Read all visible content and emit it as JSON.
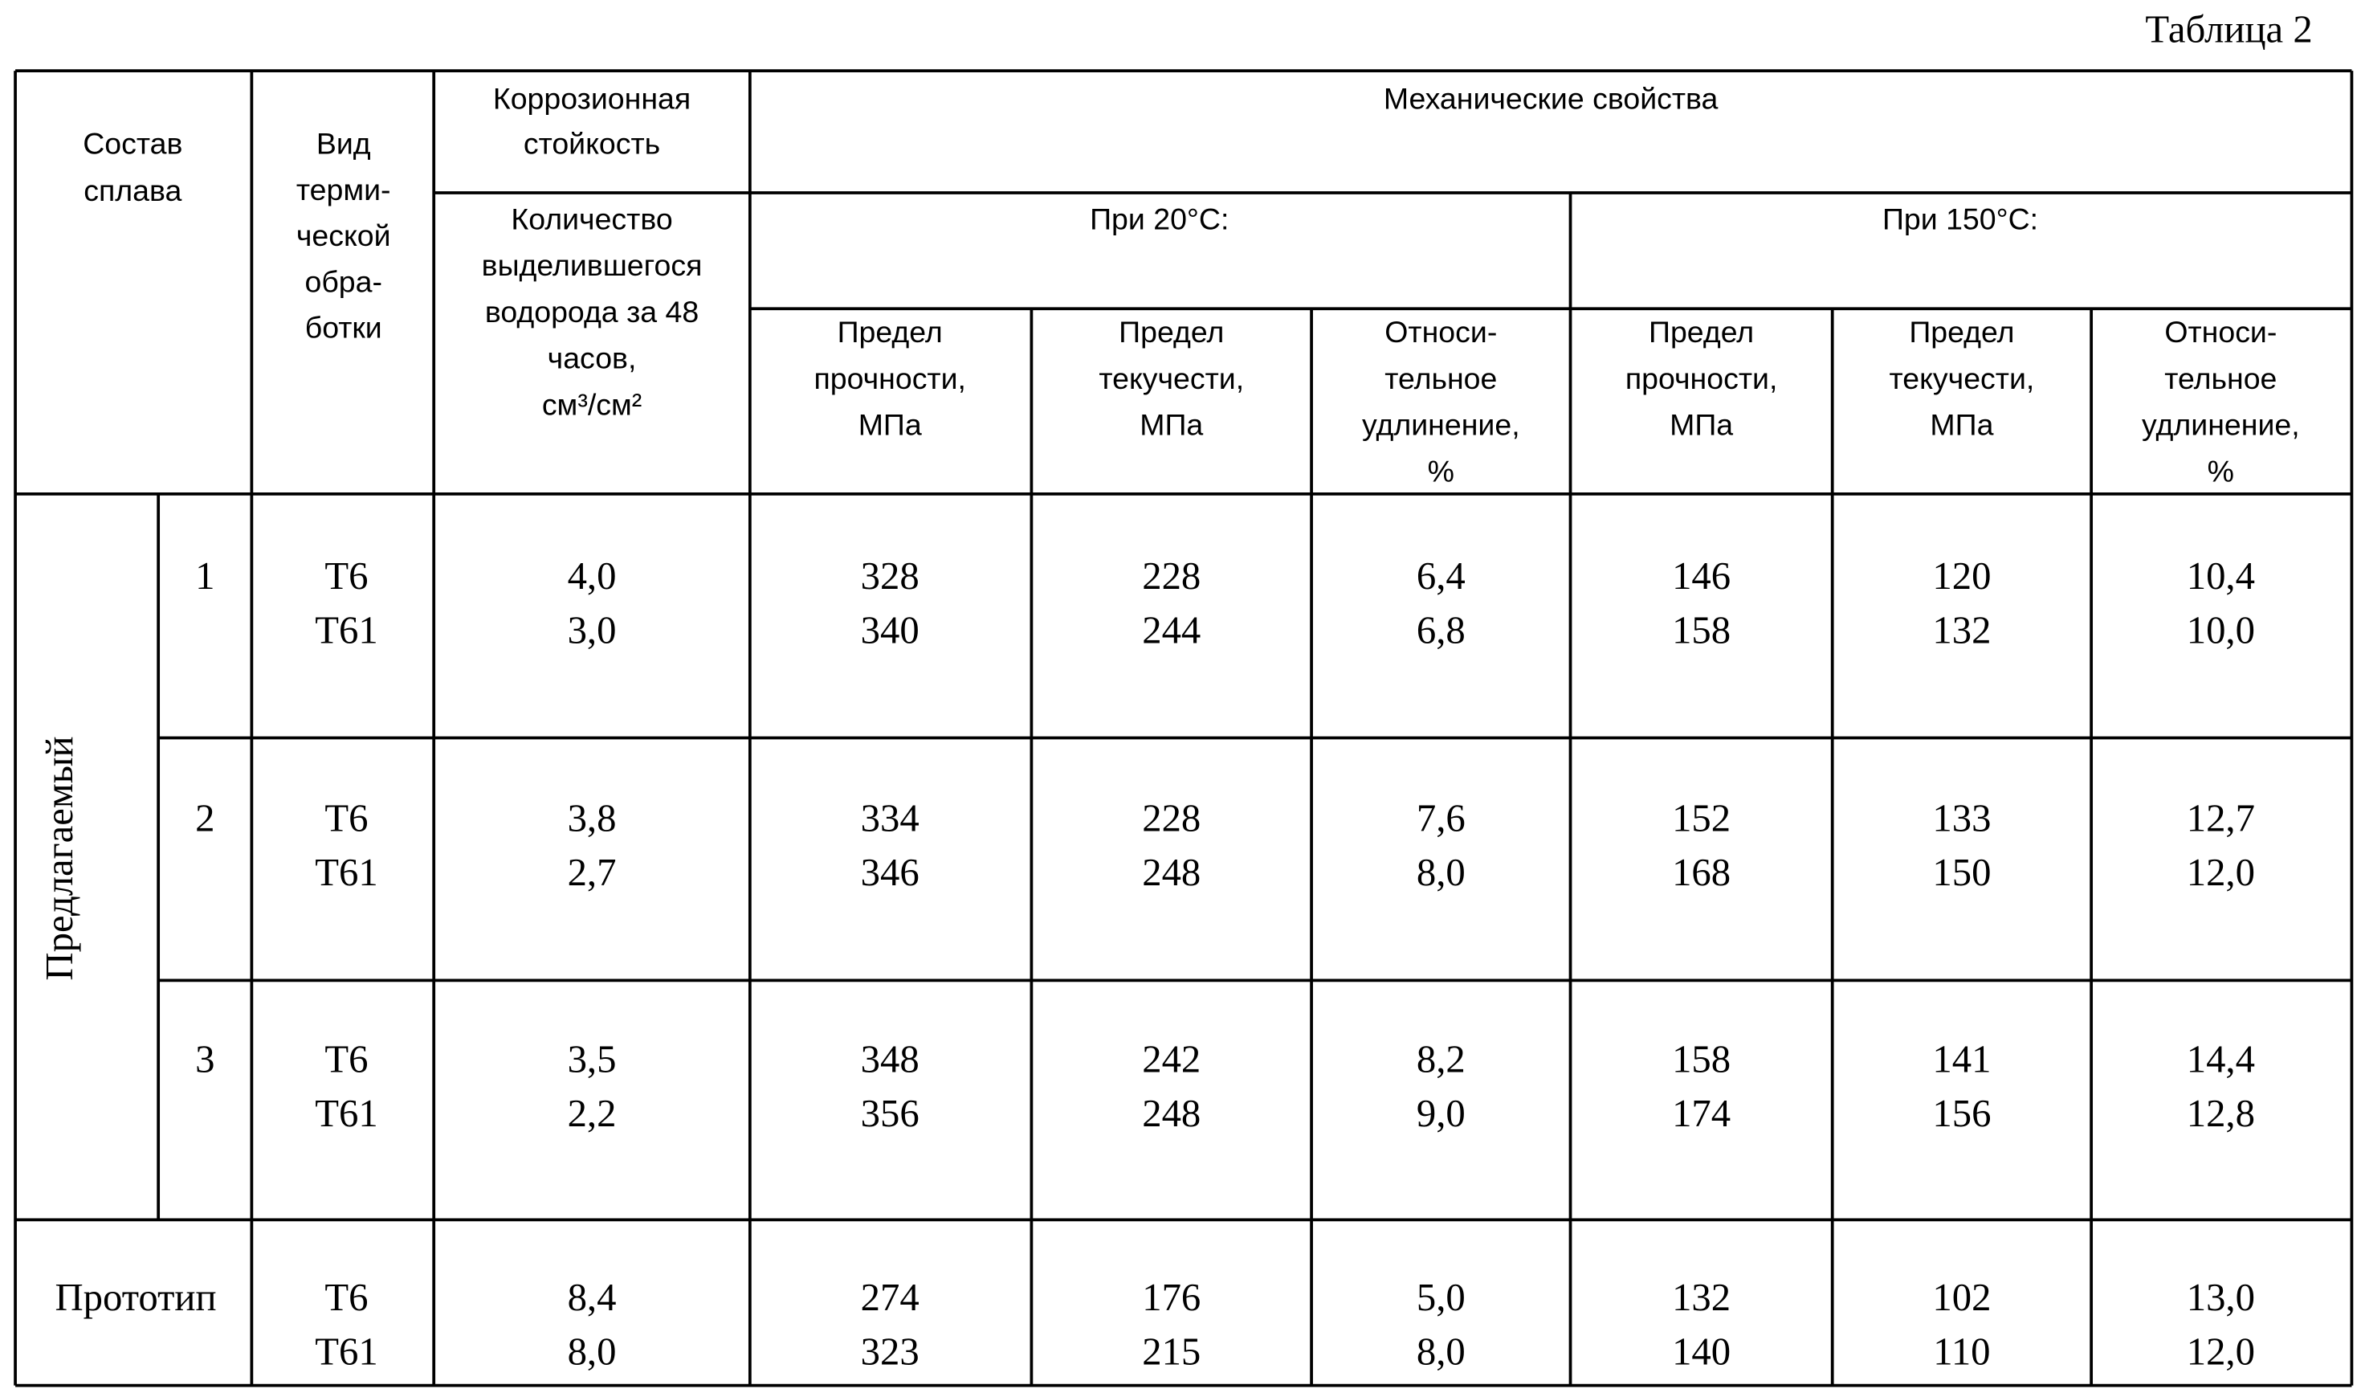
{
  "caption": "Таблица 2",
  "header": {
    "composition": [
      "Состав",
      "сплава"
    ],
    "treatment": [
      "Вид",
      "терми-",
      "ческой",
      "обра-",
      "ботки"
    ],
    "corrosion": [
      "Коррозионная",
      "стойкость"
    ],
    "hydrogen": [
      "Количество",
      "выделившегося",
      "водорода за 48",
      "часов,",
      "см³/см²"
    ],
    "mechanical": "Механические свойства",
    "at20": "При 20°С:",
    "at150": "При 150°С:",
    "properties20": [
      [
        "Предел",
        "прочности,",
        "МПа"
      ],
      [
        "Предел",
        "текучести,",
        "МПа"
      ],
      [
        "Относи-",
        "тельное",
        "удлинение,",
        "%"
      ]
    ],
    "properties150": [
      [
        "Предел",
        "прочности,",
        "МПа"
      ],
      [
        "Предел",
        "текучести,",
        "МПа"
      ],
      [
        "Относи-",
        "тельное",
        "удлинение,",
        "%"
      ]
    ]
  },
  "proposed": {
    "label": "Предлагаемый",
    "groups": [
      {
        "number": "1",
        "lines": [
          [
            "Т6",
            "4,0",
            "328",
            "228",
            "6,4",
            "146",
            "120",
            "10,4"
          ],
          [
            "Т61",
            "3,0",
            "340",
            "244",
            "6,8",
            "158",
            "132",
            "10,0"
          ]
        ]
      },
      {
        "number": "2",
        "lines": [
          [
            "Т6",
            "3,8",
            "334",
            "228",
            "7,6",
            "152",
            "133",
            "12,7"
          ],
          [
            "Т61",
            "2,7",
            "346",
            "248",
            "8,0",
            "168",
            "150",
            "12,0"
          ]
        ]
      },
      {
        "number": "3",
        "lines": [
          [
            "Т6",
            "3,5",
            "348",
            "242",
            "8,2",
            "158",
            "141",
            "14,4"
          ],
          [
            "Т61",
            "2,2",
            "356",
            "248",
            "9,0",
            "174",
            "156",
            "12,8"
          ]
        ]
      }
    ]
  },
  "prototype": {
    "label": "Прототип",
    "lines": [
      [
        "Т6",
        "8,4",
        "274",
        "176",
        "5,0",
        "132",
        "102",
        "13,0"
      ],
      [
        "Т61",
        "8,0",
        "323",
        "215",
        "8,0",
        "140",
        "110",
        "12,0"
      ]
    ]
  }
}
